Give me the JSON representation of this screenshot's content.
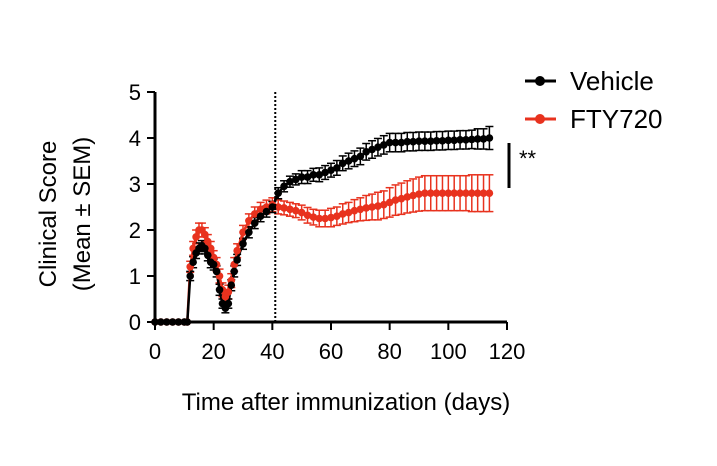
{
  "chart_data": {
    "type": "line",
    "xlabel": "Time after immunization (days)",
    "ylabel_line1": "Clinical Score",
    "ylabel_line2": "(Mean ± SEM)",
    "xlim": [
      0,
      120
    ],
    "ylim": [
      0,
      5
    ],
    "xticks": [
      0,
      20,
      40,
      60,
      80,
      100,
      120
    ],
    "yticks": [
      0,
      1,
      2,
      3,
      4,
      5
    ],
    "grid": false,
    "legend_position": "top-right",
    "reference_line_x": 41,
    "significance_label": "**",
    "series": [
      {
        "name": "Vehicle",
        "color": "#000000",
        "points": [
          [
            0,
            0
          ],
          [
            2,
            0
          ],
          [
            4,
            0
          ],
          [
            6,
            0
          ],
          [
            8,
            0
          ],
          [
            10,
            0
          ],
          [
            11,
            0
          ],
          [
            12,
            1.0
          ],
          [
            13,
            1.3
          ],
          [
            14,
            1.5
          ],
          [
            15,
            1.6
          ],
          [
            16,
            1.65
          ],
          [
            17,
            1.6
          ],
          [
            18,
            1.45
          ],
          [
            19,
            1.3
          ],
          [
            20,
            1.25
          ],
          [
            21,
            1.1
          ],
          [
            22,
            0.7
          ],
          [
            23,
            0.4
          ],
          [
            24,
            0.3
          ],
          [
            25,
            0.4
          ],
          [
            26,
            0.8
          ],
          [
            27,
            1.1
          ],
          [
            28,
            1.35
          ],
          [
            30,
            1.7
          ],
          [
            32,
            1.95
          ],
          [
            34,
            2.15
          ],
          [
            36,
            2.3
          ],
          [
            38,
            2.4
          ],
          [
            40,
            2.5
          ],
          [
            42,
            2.8
          ],
          [
            44,
            2.95
          ],
          [
            46,
            3.05
          ],
          [
            48,
            3.1
          ],
          [
            50,
            3.15
          ],
          [
            52,
            3.15
          ],
          [
            54,
            3.2
          ],
          [
            56,
            3.2
          ],
          [
            58,
            3.25
          ],
          [
            60,
            3.3
          ],
          [
            62,
            3.35
          ],
          [
            64,
            3.45
          ],
          [
            66,
            3.5
          ],
          [
            68,
            3.55
          ],
          [
            70,
            3.6
          ],
          [
            72,
            3.7
          ],
          [
            74,
            3.75
          ],
          [
            76,
            3.8
          ],
          [
            78,
            3.85
          ],
          [
            80,
            3.9
          ],
          [
            82,
            3.9
          ],
          [
            84,
            3.9
          ],
          [
            86,
            3.92
          ],
          [
            88,
            3.92
          ],
          [
            90,
            3.93
          ],
          [
            92,
            3.93
          ],
          [
            94,
            3.93
          ],
          [
            96,
            3.94
          ],
          [
            98,
            3.94
          ],
          [
            100,
            3.95
          ],
          [
            102,
            3.95
          ],
          [
            104,
            3.96
          ],
          [
            106,
            3.96
          ],
          [
            108,
            3.97
          ],
          [
            110,
            3.98
          ],
          [
            112,
            3.98
          ],
          [
            114,
            4.0
          ]
        ],
        "sem": [
          0,
          0,
          0,
          0,
          0,
          0,
          0,
          0.1,
          0.12,
          0.12,
          0.12,
          0.12,
          0.12,
          0.12,
          0.12,
          0.12,
          0.12,
          0.12,
          0.1,
          0.1,
          0.1,
          0.12,
          0.12,
          0.12,
          0.12,
          0.12,
          0.12,
          0.12,
          0.12,
          0.12,
          0.12,
          0.12,
          0.12,
          0.12,
          0.14,
          0.14,
          0.14,
          0.15,
          0.15,
          0.15,
          0.16,
          0.16,
          0.17,
          0.17,
          0.18,
          0.18,
          0.19,
          0.19,
          0.2,
          0.2,
          0.2,
          0.2,
          0.2,
          0.2,
          0.2,
          0.2,
          0.2,
          0.2,
          0.2,
          0.2,
          0.2,
          0.2,
          0.2,
          0.2,
          0.22,
          0.22,
          0.25
        ]
      },
      {
        "name": "FTY720",
        "color": "#e8321e",
        "points": [
          [
            0,
            0
          ],
          [
            2,
            0
          ],
          [
            4,
            0
          ],
          [
            6,
            0
          ],
          [
            8,
            0
          ],
          [
            10,
            0
          ],
          [
            11,
            0
          ],
          [
            12,
            1.2
          ],
          [
            13,
            1.6
          ],
          [
            14,
            1.85
          ],
          [
            15,
            2.0
          ],
          [
            16,
            2.0
          ],
          [
            17,
            1.9
          ],
          [
            18,
            1.75
          ],
          [
            19,
            1.6
          ],
          [
            20,
            1.4
          ],
          [
            21,
            1.25
          ],
          [
            22,
            1.0
          ],
          [
            23,
            0.7
          ],
          [
            24,
            0.55
          ],
          [
            25,
            0.65
          ],
          [
            26,
            0.9
          ],
          [
            27,
            1.25
          ],
          [
            28,
            1.55
          ],
          [
            30,
            1.95
          ],
          [
            32,
            2.2
          ],
          [
            34,
            2.35
          ],
          [
            36,
            2.45
          ],
          [
            38,
            2.5
          ],
          [
            40,
            2.55
          ],
          [
            42,
            2.5
          ],
          [
            44,
            2.48
          ],
          [
            46,
            2.45
          ],
          [
            48,
            2.42
          ],
          [
            50,
            2.38
          ],
          [
            52,
            2.32
          ],
          [
            54,
            2.28
          ],
          [
            56,
            2.25
          ],
          [
            58,
            2.25
          ],
          [
            60,
            2.27
          ],
          [
            62,
            2.3
          ],
          [
            64,
            2.35
          ],
          [
            66,
            2.38
          ],
          [
            68,
            2.42
          ],
          [
            70,
            2.45
          ],
          [
            72,
            2.48
          ],
          [
            74,
            2.5
          ],
          [
            76,
            2.52
          ],
          [
            78,
            2.55
          ],
          [
            80,
            2.6
          ],
          [
            82,
            2.65
          ],
          [
            84,
            2.68
          ],
          [
            86,
            2.72
          ],
          [
            88,
            2.75
          ],
          [
            90,
            2.78
          ],
          [
            92,
            2.8
          ],
          [
            94,
            2.8
          ],
          [
            96,
            2.8
          ],
          [
            98,
            2.8
          ],
          [
            100,
            2.8
          ],
          [
            102,
            2.8
          ],
          [
            104,
            2.8
          ],
          [
            106,
            2.8
          ],
          [
            108,
            2.8
          ],
          [
            110,
            2.8
          ],
          [
            112,
            2.8
          ],
          [
            114,
            2.8
          ]
        ],
        "sem": [
          0,
          0,
          0,
          0,
          0,
          0,
          0,
          0.12,
          0.15,
          0.15,
          0.15,
          0.15,
          0.15,
          0.15,
          0.15,
          0.15,
          0.15,
          0.15,
          0.15,
          0.15,
          0.15,
          0.15,
          0.15,
          0.15,
          0.15,
          0.15,
          0.15,
          0.15,
          0.15,
          0.15,
          0.15,
          0.15,
          0.15,
          0.15,
          0.16,
          0.17,
          0.17,
          0.18,
          0.18,
          0.2,
          0.2,
          0.22,
          0.22,
          0.24,
          0.25,
          0.27,
          0.28,
          0.3,
          0.3,
          0.32,
          0.33,
          0.34,
          0.35,
          0.36,
          0.37,
          0.38,
          0.38,
          0.38,
          0.38,
          0.38,
          0.38,
          0.38,
          0.38,
          0.4,
          0.4,
          0.4,
          0.4
        ]
      }
    ]
  }
}
